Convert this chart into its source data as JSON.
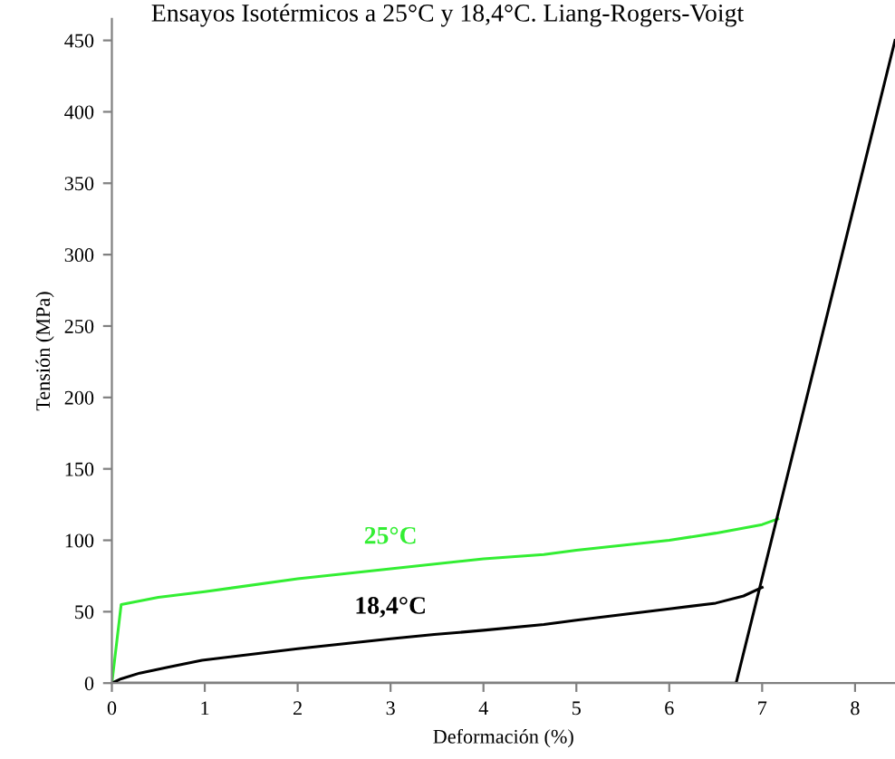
{
  "chart_data": {
    "type": "line",
    "title": "Ensayos Isotérmicos a 25°C y 18,4°C. Liang-Rogers-Voigt",
    "xlabel": "Deformación (%)",
    "ylabel": "Tensión (MPa)",
    "xlim": [
      0,
      8.43
    ],
    "ylim": [
      0,
      465
    ],
    "xticks": [
      0,
      1,
      2,
      3,
      4,
      5,
      6,
      7,
      8
    ],
    "yticks": [
      0,
      50,
      100,
      150,
      200,
      250,
      300,
      350,
      400,
      450
    ],
    "grid": false,
    "legend": false,
    "line_style": "solid",
    "marker": "none",
    "series": [
      {
        "name": "25°C",
        "color": "#33ee33",
        "x": [
          0,
          0.1,
          0.5,
          1,
          2,
          3,
          4,
          4.65,
          5,
          6,
          6.5,
          7,
          7.17
        ],
        "values": [
          0,
          55,
          60,
          64,
          73,
          80,
          87,
          90,
          93,
          100,
          105,
          111,
          115
        ]
      },
      {
        "name": "18,4°C",
        "color": "#000000",
        "x": [
          0,
          0.1,
          0.3,
          0.6,
          0.97,
          2,
          3,
          3.47,
          4,
          4.65,
          5,
          6,
          6.5,
          6.8,
          7.0
        ],
        "values": [
          0,
          3,
          7,
          11,
          16,
          24,
          31,
          34,
          37,
          41,
          44,
          52,
          56,
          61,
          67
        ]
      },
      {
        "color": "#000000",
        "x": [
          0,
          6.72,
          8.43
        ],
        "values": [
          0,
          0,
          450
        ]
      }
    ]
  }
}
